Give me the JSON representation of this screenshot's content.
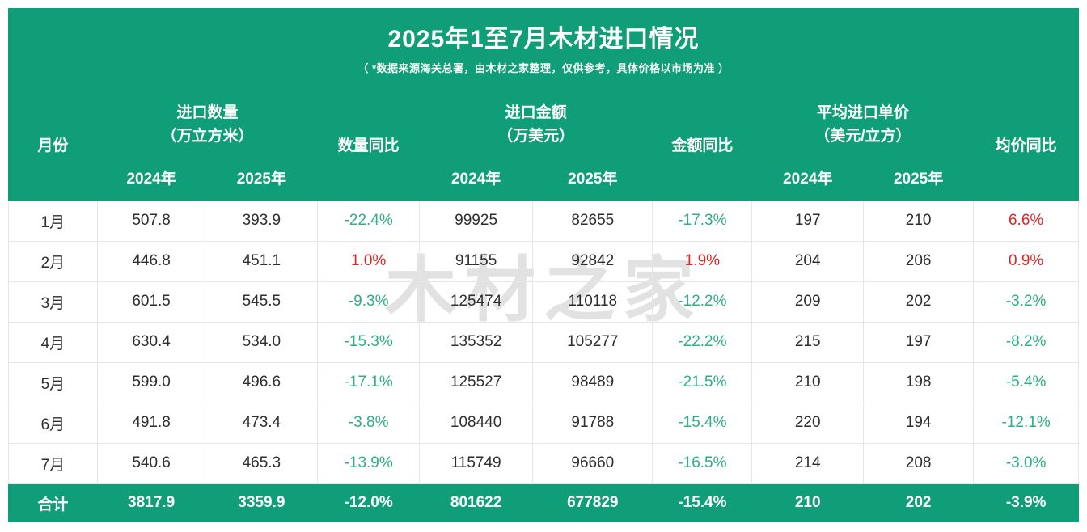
{
  "title": "2025年1至7月木材进口情况",
  "subtitle": "（ *数据来源海关总署，由木材之家整理，仅供参考，具体价格以市场为准 ）",
  "watermark": "木材之家",
  "colors": {
    "header_green": "#0F9E77",
    "total_green": "#0F9E77",
    "positive_red": "#E02424",
    "negative_green": "#2FAE82",
    "grid_line": "#E6E6E6",
    "watermark_gray": "#E2E2E2",
    "body_text": "#2E2E2E"
  },
  "table": {
    "header": {
      "month": "月份",
      "qty_group": "进口数量",
      "qty_unit": "（万立方米）",
      "qty_yoy": "数量同比",
      "amt_group": "进口金额",
      "amt_unit": "（万美元）",
      "amt_yoy": "金额同比",
      "price_group": "平均进口单价",
      "price_unit": "（美元/立方）",
      "price_yoy": "均价同比",
      "years": [
        "2024年",
        "2025年"
      ]
    },
    "rows": [
      {
        "month": "1月",
        "cells": [
          "507.8",
          "393.9",
          "-22.4%",
          "99925",
          "82655",
          "-17.3%",
          "197",
          "210",
          "6.6%"
        ]
      },
      {
        "month": "2月",
        "cells": [
          "446.8",
          "451.1",
          "1.0%",
          "91155",
          "92842",
          "1.9%",
          "204",
          "206",
          "0.9%"
        ]
      },
      {
        "month": "3月",
        "cells": [
          "601.5",
          "545.5",
          "-9.3%",
          "125474",
          "110118",
          "-12.2%",
          "209",
          "202",
          "-3.2%"
        ]
      },
      {
        "month": "4月",
        "cells": [
          "630.4",
          "534.0",
          "-15.3%",
          "135352",
          "105277",
          "-22.2%",
          "215",
          "197",
          "-8.2%"
        ]
      },
      {
        "month": "5月",
        "cells": [
          "599.0",
          "496.6",
          "-17.1%",
          "125527",
          "98489",
          "-21.5%",
          "210",
          "198",
          "-5.4%"
        ]
      },
      {
        "month": "6月",
        "cells": [
          "491.8",
          "473.4",
          "-3.8%",
          "108440",
          "91788",
          "-15.4%",
          "220",
          "194",
          "-12.1%"
        ]
      },
      {
        "month": "7月",
        "cells": [
          "540.6",
          "465.3",
          "-13.9%",
          "115749",
          "96660",
          "-16.5%",
          "214",
          "208",
          "-3.0%"
        ]
      }
    ],
    "total": {
      "label": "合计",
      "cells": [
        "3817.9",
        "3359.9",
        "-12.0%",
        "801622",
        "677829",
        "-15.4%",
        "210",
        "202",
        "-3.9%"
      ]
    }
  }
}
